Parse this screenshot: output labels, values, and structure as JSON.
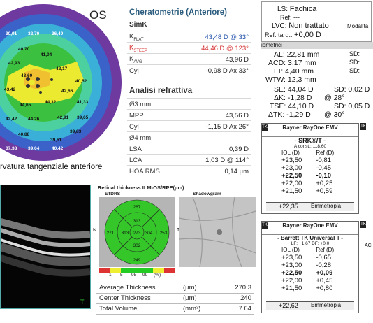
{
  "map": {
    "eye": "OS",
    "caption": "rvatura tangenziale anteriore",
    "values": [
      "30,91",
      "32,70",
      "36,49",
      "40,70",
      "41,04",
      "42,93",
      "43,60",
      "42,17",
      "43,42",
      "44,65",
      "44,32",
      "42,66",
      "40,52",
      "42,42",
      "44,26",
      "42,91",
      "41,33",
      "39,65",
      "40,88",
      "39,61",
      "37,38",
      "39,04",
      "40,42",
      "39,83"
    ]
  },
  "keratometry": {
    "title": "Cheratometrie (Anteriore)",
    "simk_label": "SimK",
    "rows": [
      {
        "label": "K",
        "sub": "FLAT",
        "value": "43,48 D @ 33°",
        "color": "#1f4fa8"
      },
      {
        "label": "K",
        "sub": "STEEP",
        "value": "44,46 D @ 123°",
        "color": "#d42a2a"
      },
      {
        "label": "K",
        "sub": "AVG",
        "value": "43,96 D",
        "color": "#222222"
      },
      {
        "label": "Cyl",
        "sub": "",
        "value": "-0,98 D Ax 33°",
        "color": "#222222"
      }
    ],
    "refr_title": "Analisi refrattiva",
    "refr_rows": [
      {
        "label": "Ø3 mm",
        "value": ""
      },
      {
        "label": "MPP",
        "value": "43,56 D"
      },
      {
        "label": "Cyl",
        "value": "-1,15 D Ax 26°"
      },
      {
        "label": "Ø4 mm",
        "value": ""
      },
      {
        "label": "LSA",
        "value": "0,39 D"
      },
      {
        "label": "LCA",
        "value": "1,03 D @ 114°"
      },
      {
        "label": "HOA RMS",
        "value": "0,14 µm"
      }
    ]
  },
  "biometry": {
    "ls_label": "LS:",
    "ls_value": "Fachica",
    "ref_label": "Ref:",
    "ref_value": "---",
    "lvc_label": "LVC:",
    "lvc_value": "Non trattato",
    "modal_label": "Modalità",
    "target_label": "Ref. targ.:",
    "target_value": "+0,00 D",
    "section_label": "iometrici",
    "rows": [
      {
        "label": "AL:",
        "value": "22,81 mm",
        "side": "SD:"
      },
      {
        "label": "ACD:",
        "value": "3,17 mm",
        "side": "SD:"
      },
      {
        "label": "LT:",
        "value": "4,40 mm",
        "side": "SD:"
      },
      {
        "label": "WTW:",
        "value": "12,3 mm",
        "side": ""
      }
    ],
    "krows": [
      {
        "label": "SE:",
        "value": "44,04 D",
        "sd": "SD: 0,02 D"
      },
      {
        "label": "ΔK:",
        "value": "-1,28 D",
        "sd": "@ 28°"
      },
      {
        "label": "TSE:",
        "value": "44,10 D",
        "sd": "SD: 0,05 D"
      },
      {
        "label": "ΔTK:",
        "value": "-1,29 D",
        "sd": "@ 30°"
      }
    ],
    "tk": "TK",
    "lens1": {
      "name": "Rayner RayOne EMV",
      "formula": "- SRK®/T -",
      "const": "A const.: 118,60",
      "col1": "IOL (D)",
      "col2": "Ref (D)",
      "rows": [
        [
          "+23,50",
          "-0,81"
        ],
        [
          "+23,00",
          "-0,45"
        ],
        [
          "+22,50",
          "-0,10"
        ],
        [
          "+22,00",
          "+0,25"
        ],
        [
          "+21,50",
          "+0,59"
        ]
      ],
      "emme_value": "+22,35",
      "emme_label": "Emmetropia"
    },
    "lens2": {
      "name": "Rayner RayOne EMV",
      "formula": "- Barrett TK Universal II -",
      "const": "LF: +1,67  DF: +0,0",
      "col1": "IOL (D)",
      "col2": "Ref (D)",
      "rows": [
        [
          "+23,50",
          "-0,65"
        ],
        [
          "+23,00",
          "-0,28"
        ],
        [
          "+22,50",
          "+0,09"
        ],
        [
          "+22,00",
          "+0,45"
        ],
        [
          "+21,50",
          "+0,80"
        ]
      ],
      "emme_value": "+22,62",
      "emme_label": "Emmetropia"
    },
    "side_ac": "AC"
  },
  "retina": {
    "title": "Retinal thickness ILM-OS/RPE(µm)",
    "etdrs_label": "ETDRS",
    "shadow_label": "Shadowgram",
    "values": {
      "top_outer": "267",
      "top_inner": "313",
      "left_outer": "271",
      "left_inner": "313",
      "center": "273",
      "right_inner": "304",
      "right_outer": "253",
      "bottom_inner": "302",
      "bottom_outer": "249"
    },
    "n_label": "N",
    "t_label": "T",
    "legend": [
      "1",
      "5",
      "95",
      "99",
      "(%)"
    ],
    "legend_colors": [
      "#d33",
      "#ee3",
      "#2c2",
      "#ee3",
      "#d33"
    ],
    "stats": [
      {
        "label": "Average Thickness",
        "unit": "(µm)",
        "value": "270.3"
      },
      {
        "label": "Center Thickness",
        "unit": "(µm)",
        "value": "240"
      },
      {
        "label": "Total Volume",
        "unit": "(mm³)",
        "value": "7.64"
      }
    ]
  },
  "oct": {
    "t_label": "T"
  }
}
